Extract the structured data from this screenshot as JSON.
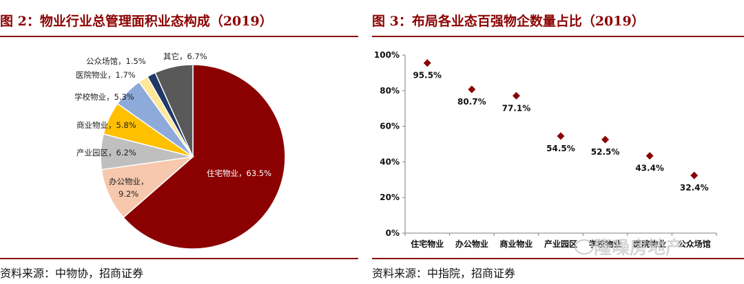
{
  "left": {
    "title": "图 2：物业行业总管理面积业态构成（2019）",
    "source": "资料来源：中物协，招商证券"
  },
  "right": {
    "title": "图 3：布局各业态百强物企数量占比（2019）",
    "source": "资料来源：中指院，招商证券"
  },
  "watermark": "隆噪房地产",
  "colors": {
    "accent": "#8b0000"
  },
  "chart_data": [
    {
      "type": "pie",
      "slices": [
        {
          "label": "住宅物业",
          "value": 63.5,
          "display": "住宅物业，63.5%",
          "color": "#8b0000"
        },
        {
          "label": "办公物业",
          "value": 9.2,
          "display_lines": [
            "办公物业，",
            "9.2%"
          ],
          "color": "#f7c8ad"
        },
        {
          "label": "产业园区",
          "value": 6.2,
          "display": "产业园区，6.2%",
          "color": "#bfbfbf"
        },
        {
          "label": "商业物业",
          "value": 5.8,
          "display": "商业物业，5.8%",
          "color": "#ffc000"
        },
        {
          "label": "学校物业",
          "value": 5.3,
          "display": "学校物业，5.3%",
          "color": "#8eaadb"
        },
        {
          "label": "医院物业",
          "value": 1.7,
          "display": "医院物业，1.7%",
          "color": "#ffe699"
        },
        {
          "label": "公众场馆",
          "value": 1.5,
          "display": "公众场馆，1.5%",
          "color": "#1f3864"
        },
        {
          "label": "其它",
          "value": 6.7,
          "display": "其它，6.7%",
          "color": "#595959"
        }
      ]
    },
    {
      "type": "scatter",
      "categories": [
        "住宅物业",
        "办公物业",
        "商业物业",
        "产业园区",
        "学校物业",
        "医院物业",
        "公众场馆"
      ],
      "values": [
        95.5,
        80.7,
        77.1,
        54.5,
        52.5,
        43.4,
        32.4
      ],
      "value_labels": [
        "95.5%",
        "80.7%",
        "77.1%",
        "54.5%",
        "52.5%",
        "43.4%",
        "32.4%"
      ],
      "y_ticks": [
        "0%",
        "20%",
        "40%",
        "60%",
        "80%",
        "100%"
      ],
      "ylim": [
        0,
        100
      ],
      "marker_color": "#8b0000",
      "grid": false
    }
  ]
}
